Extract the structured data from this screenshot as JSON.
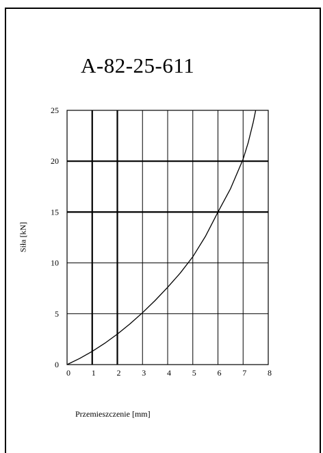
{
  "chart_data": {
    "type": "line",
    "title": "A-82-25-611",
    "xlabel": "Przemieszczenie [mm]",
    "ylabel": "Siła [kN]",
    "xlim": [
      0,
      8
    ],
    "ylim": [
      0,
      25
    ],
    "x_ticks": [
      "0",
      "1",
      "2",
      "3",
      "4",
      "5",
      "6",
      "7",
      "8"
    ],
    "y_ticks": [
      "0",
      "5",
      "10",
      "15",
      "20",
      "25"
    ],
    "grid": true,
    "series": [
      {
        "x": [
          0,
          0.5,
          1,
          1.5,
          2,
          2.5,
          3,
          3.5,
          4,
          4.5,
          5,
          5.5,
          6,
          6.5,
          7,
          7.2,
          7.4,
          7.5
        ],
        "y": [
          0,
          0.6,
          1.3,
          2.1,
          3.0,
          4.0,
          5.1,
          6.3,
          7.6,
          9.0,
          10.6,
          12.6,
          15.0,
          17.3,
          20.2,
          21.8,
          23.8,
          25.0
        ]
      }
    ]
  }
}
